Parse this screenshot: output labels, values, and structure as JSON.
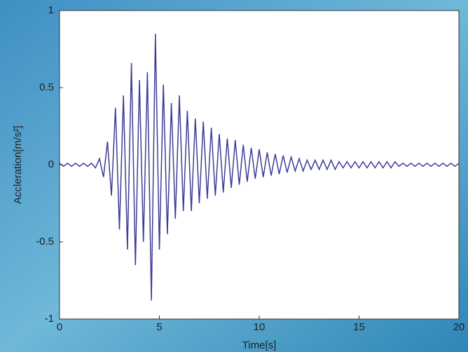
{
  "chart_data": {
    "type": "line",
    "xlabel": "Time[s]",
    "ylabel": "Accleration[m/s²]",
    "xlim": [
      0,
      20
    ],
    "ylim": [
      -1,
      1
    ],
    "xticks": [
      0,
      5,
      10,
      15,
      20
    ],
    "yticks": [
      -1,
      -0.5,
      0,
      0.5,
      1
    ],
    "series": [
      {
        "color": "#3d3d96",
        "x": [
          0,
          0.2,
          0.4,
          0.6,
          0.8,
          1,
          1.2,
          1.4,
          1.6,
          1.8,
          2,
          2.2,
          2.4,
          2.6,
          2.8,
          3,
          3.2,
          3.4,
          3.6,
          3.8,
          4,
          4.2,
          4.4,
          4.6,
          4.8,
          5,
          5.2,
          5.4,
          5.6,
          5.8,
          6,
          6.2,
          6.4,
          6.6,
          6.8,
          7,
          7.2,
          7.4,
          7.6,
          7.8,
          8,
          8.2,
          8.4,
          8.6,
          8.8,
          9,
          9.2,
          9.4,
          9.6,
          9.8,
          10,
          10.2,
          10.4,
          10.6,
          10.8,
          11,
          11.2,
          11.4,
          11.6,
          11.8,
          12,
          12.2,
          12.4,
          12.6,
          12.8,
          13,
          13.2,
          13.4,
          13.6,
          13.8,
          14,
          14.2,
          14.4,
          14.6,
          14.8,
          15,
          15.2,
          15.4,
          15.6,
          15.8,
          16,
          16.2,
          16.4,
          16.6,
          16.8,
          17,
          17.2,
          17.4,
          17.6,
          17.8,
          18,
          18.2,
          18.4,
          18.6,
          18.8,
          19,
          19.2,
          19.4,
          19.6,
          19.8,
          20
        ],
        "values": [
          0.01,
          -0.01,
          0.01,
          -0.01,
          0.01,
          -0.01,
          0.01,
          -0.01,
          0.01,
          -0.02,
          0.04,
          -0.08,
          0.15,
          -0.2,
          0.37,
          -0.42,
          0.45,
          -0.55,
          0.66,
          -0.65,
          0.55,
          -0.5,
          0.6,
          -0.88,
          0.85,
          -0.55,
          0.52,
          -0.45,
          0.4,
          -0.35,
          0.45,
          -0.3,
          0.35,
          -0.3,
          0.3,
          -0.25,
          0.28,
          -0.22,
          0.24,
          -0.2,
          0.2,
          -0.18,
          0.17,
          -0.15,
          0.16,
          -0.13,
          0.13,
          -0.11,
          0.11,
          -0.09,
          0.1,
          -0.08,
          0.08,
          -0.07,
          0.07,
          -0.06,
          0.06,
          -0.05,
          0.05,
          -0.04,
          0.04,
          -0.04,
          0.03,
          -0.03,
          0.03,
          -0.03,
          0.03,
          -0.03,
          0.03,
          -0.03,
          0.02,
          -0.02,
          0.02,
          -0.02,
          0.02,
          -0.02,
          0.02,
          -0.02,
          0.02,
          -0.02,
          0.02,
          -0.02,
          0.02,
          -0.02,
          0.02,
          -0.01,
          0.01,
          -0.01,
          0.01,
          -0.01,
          0.01,
          -0.01,
          0.01,
          -0.01,
          0.01,
          -0.01,
          0.01,
          -0.01,
          0.01,
          -0.01,
          0.01
        ]
      }
    ]
  }
}
